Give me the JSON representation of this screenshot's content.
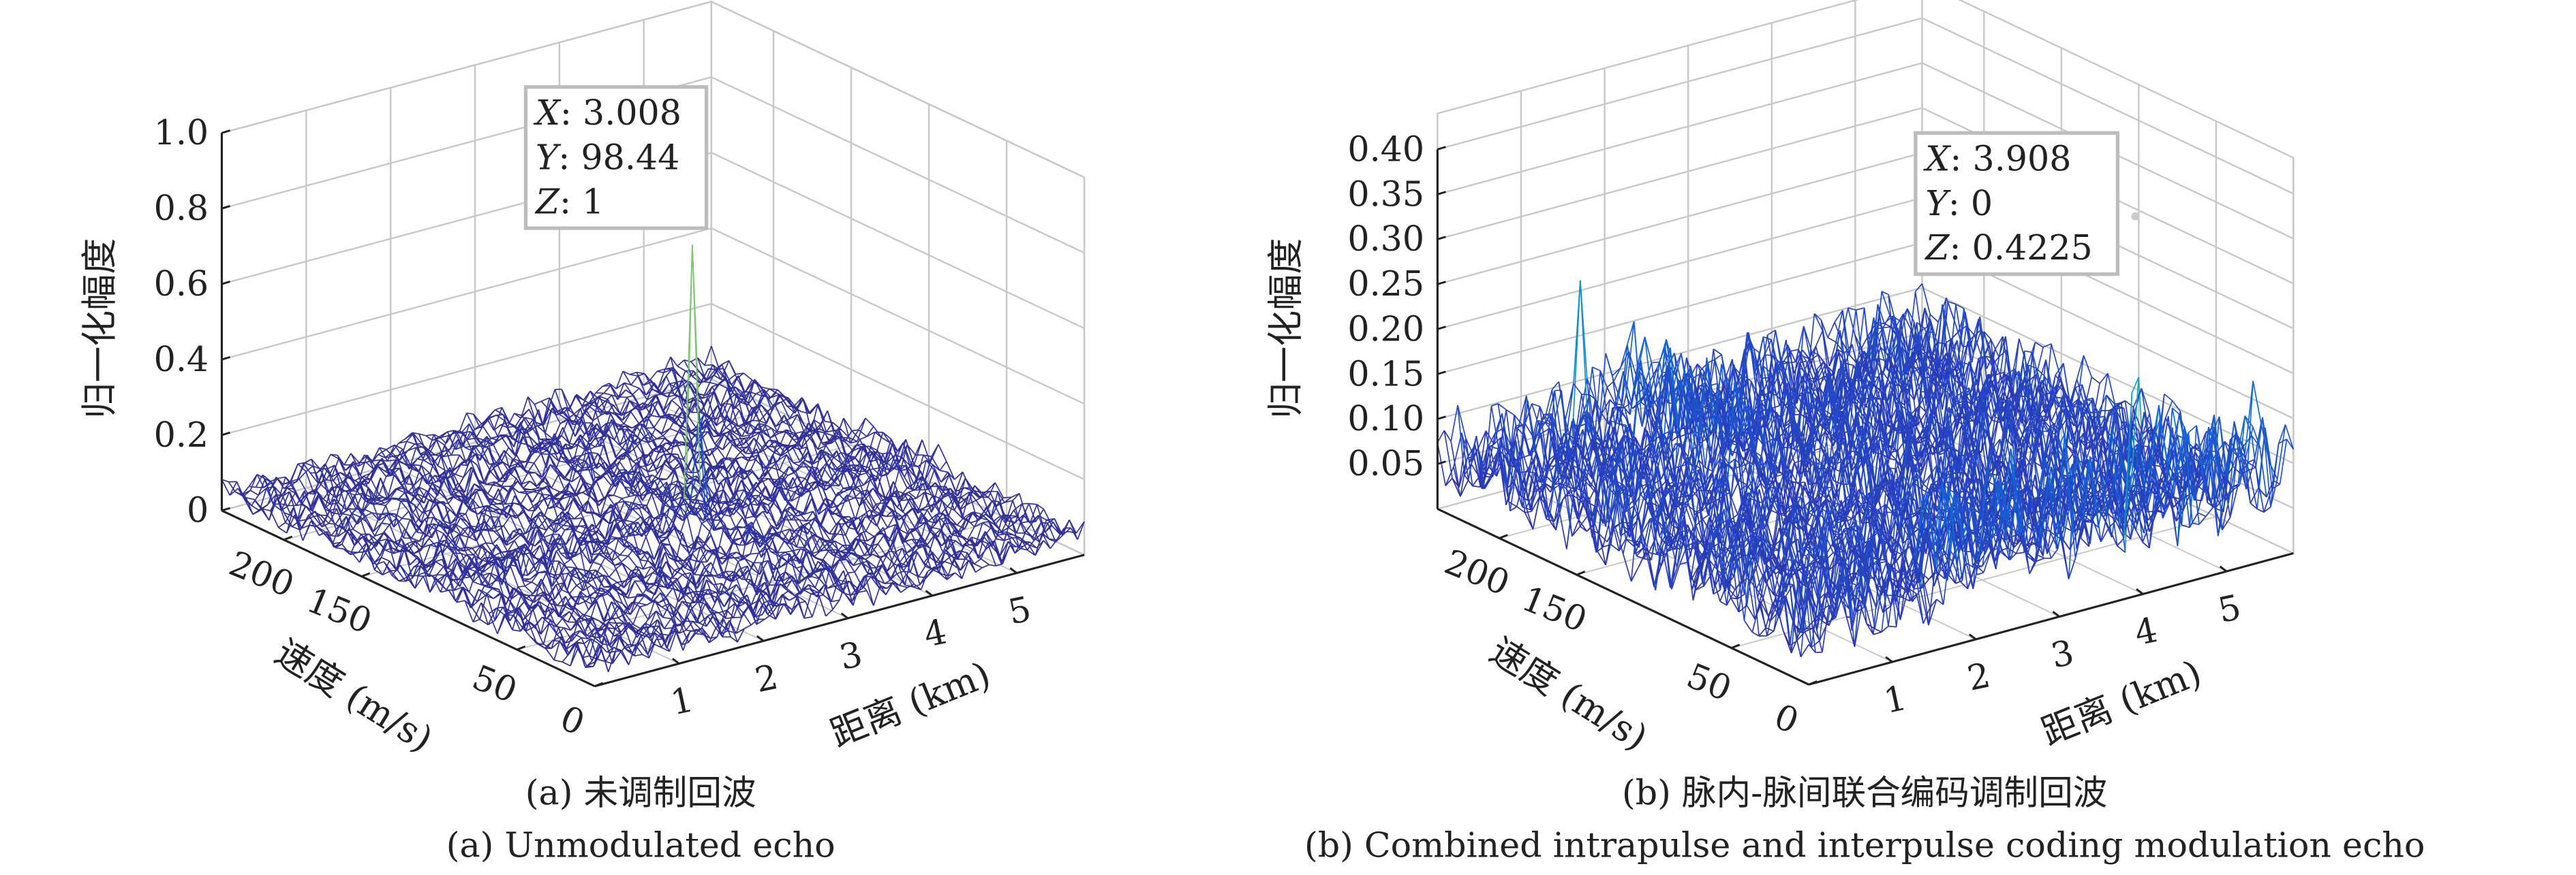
{
  "chart_data": [
    {
      "type": "surface",
      "panel": "a",
      "caption_cn": "(a) 未调制回波",
      "caption_en": "(a) Unmodulated echo",
      "xlabel": "距离 (km)",
      "ylabel": "速度 (m/s)",
      "zlabel": "归一化幅度",
      "xlim": [
        0,
        5.8
      ],
      "ylim": [
        0,
        240
      ],
      "zlim": [
        0,
        1.0
      ],
      "xticks": [
        "1",
        "2",
        "3",
        "4",
        "5"
      ],
      "xtick_values": [
        1,
        2,
        3,
        4,
        5
      ],
      "yticks": [
        "0",
        "50",
        "150",
        "200"
      ],
      "ytick_values": [
        0,
        50,
        150,
        200
      ],
      "zticks": [
        "0",
        "0.2",
        "0.4",
        "0.6",
        "0.8",
        "1.0"
      ],
      "ztick_values": [
        0,
        0.2,
        0.4,
        0.6,
        0.8,
        1.0
      ],
      "noise_level": 0.08,
      "peaks": [
        {
          "x": 3.008,
          "y": 98.44,
          "z": 1
        }
      ],
      "datatip": {
        "x_label": "X",
        "x": ": 3.008",
        "y_label": "Y",
        "y": ": 98.44",
        "z_label": "Z",
        "z": ": 1"
      },
      "grid": true,
      "colormap": "parula"
    },
    {
      "type": "surface",
      "panel": "b",
      "caption_cn": "(b) 脉内-脉间联合编码调制回波",
      "caption_en": "(b) Combined intrapulse and interpulse coding modulation echo",
      "xlabel": "距离 (km)",
      "ylabel": "速度 (m/s)",
      "zlabel": "归一化幅度",
      "xlim": [
        0,
        5.8
      ],
      "ylim": [
        0,
        240
      ],
      "zlim": [
        0,
        0.4
      ],
      "xticks": [
        "1",
        "2",
        "3",
        "4",
        "5"
      ],
      "xtick_values": [
        1,
        2,
        3,
        4,
        5
      ],
      "yticks": [
        "0",
        "50",
        "150",
        "200"
      ],
      "ytick_values": [
        0,
        50,
        150,
        200
      ],
      "zticks": [
        "0.05",
        "0.10",
        "0.15",
        "0.20",
        "0.25",
        "0.30",
        "0.35",
        "0.40"
      ],
      "ztick_values": [
        0.05,
        0.1,
        0.15,
        0.2,
        0.25,
        0.3,
        0.35,
        0.4
      ],
      "noise_level": 0.12,
      "peaks": [
        {
          "x": 3.908,
          "y": 0,
          "z": 0.4225
        },
        {
          "x": 1.6,
          "y": 235,
          "z": 0.23
        }
      ],
      "datatip": {
        "x_label": "X",
        "x": ": 3.908",
        "y_label": "Y",
        "y": ": 0",
        "z_label": "Z",
        "z": ": 0.4225"
      },
      "grid": true,
      "colormap": "parula"
    }
  ],
  "colors": {
    "low": "#352a87",
    "mid": "#0f7ad8",
    "high": "#f9fb0e",
    "grid": "#c8c8c8",
    "axis": "#222222"
  }
}
